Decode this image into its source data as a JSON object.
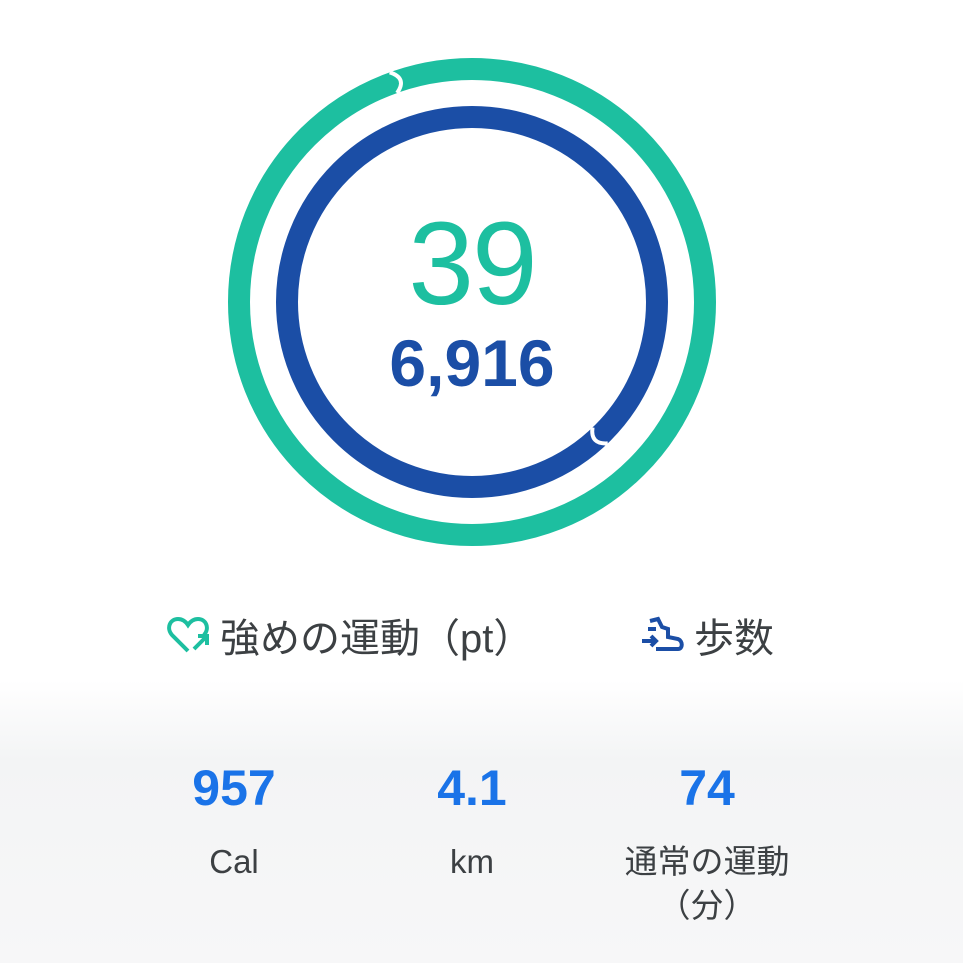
{
  "summary": {
    "heart_points": "39",
    "steps": "6,916",
    "heart_points_progress": 1.95,
    "steps_progress": 1.383
  },
  "legend": {
    "heart_points_label": "強めの運動（pt）",
    "steps_label": "歩数",
    "heart_icon": "heart-arrow-icon",
    "steps_icon": "shoe-icon"
  },
  "stats": [
    {
      "value": "957",
      "label": "Cal"
    },
    {
      "value": "4.1",
      "label": "km"
    },
    {
      "value": "74",
      "label": "通常の運動",
      "label2": "（分）"
    }
  ],
  "colors": {
    "heart": "#1dbfa0",
    "steps": "#1b4ea6",
    "stat_value": "#1a73e8"
  }
}
